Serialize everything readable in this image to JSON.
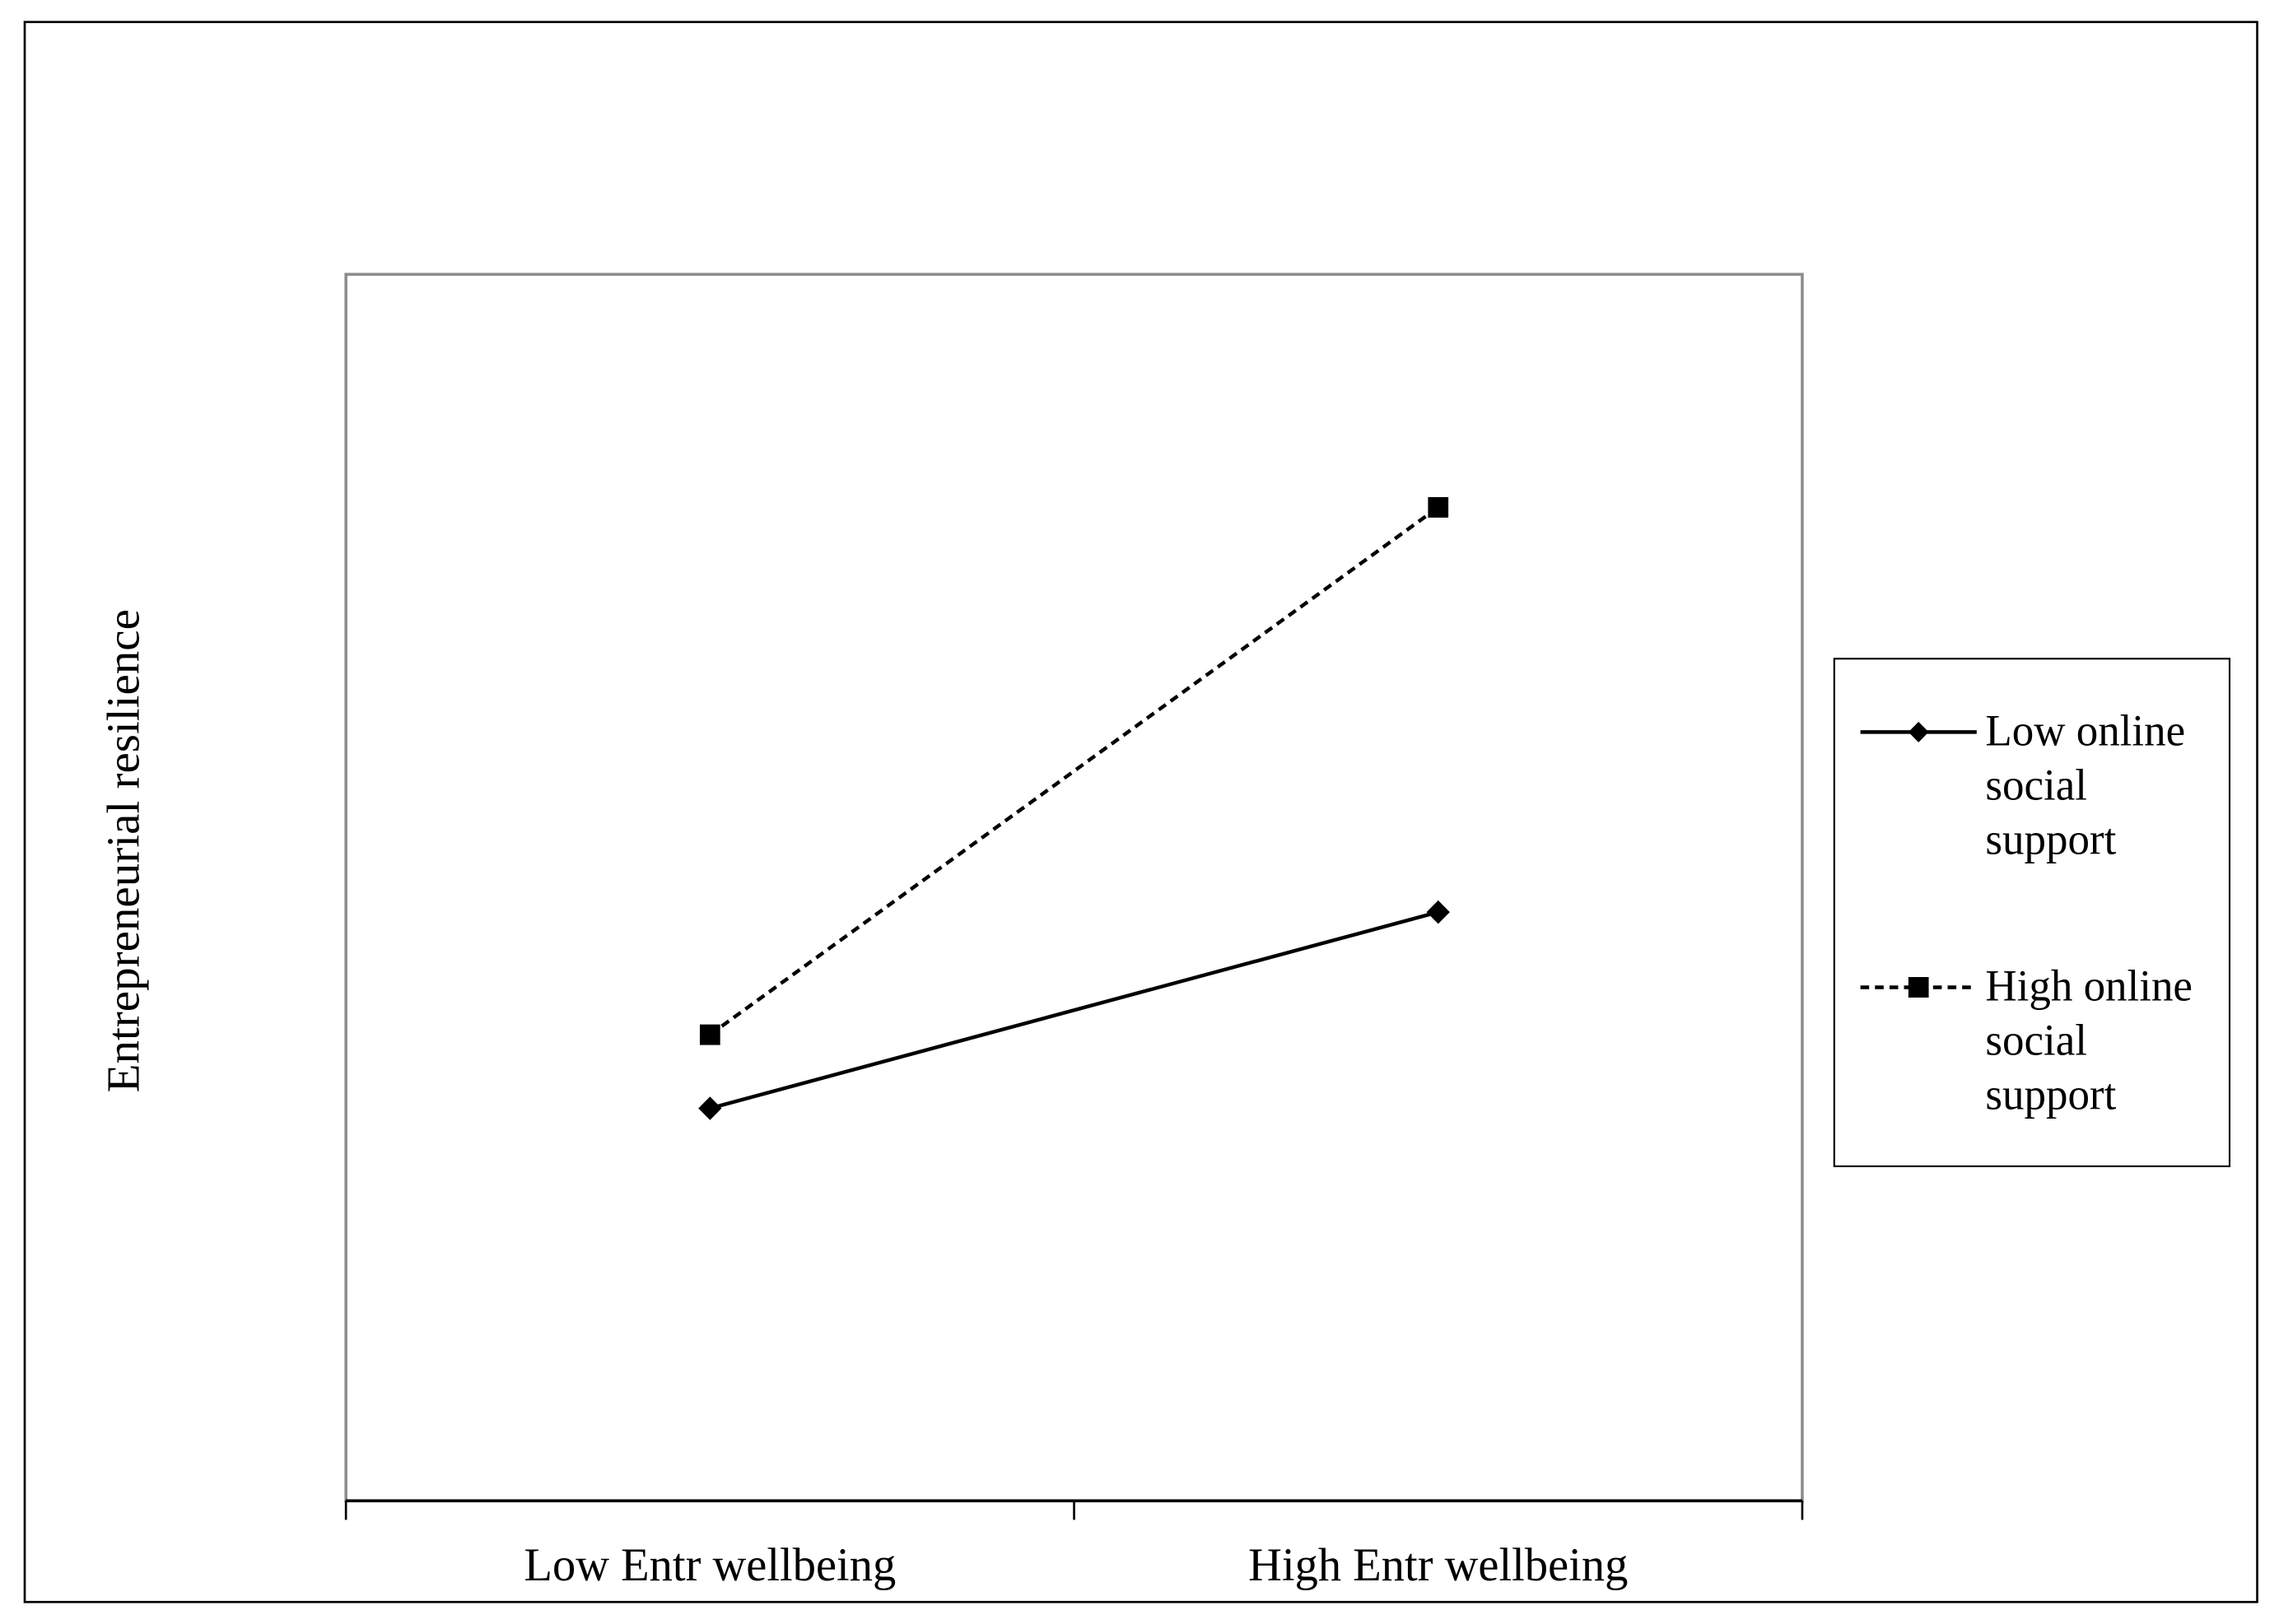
{
  "chart_data": {
    "type": "line",
    "y_label": "Entrepreneurial  resilience",
    "categories": [
      "Low Entr  wellbeing",
      "High Entr  wellbeing"
    ],
    "ylim": [
      0,
      100
    ],
    "series": [
      {
        "name": "Low online social support",
        "color": "#000000",
        "dash": "solid",
        "marker": "diamond",
        "values": [
          32,
          48
        ]
      },
      {
        "name": "High online social support",
        "color": "#000000",
        "dash": "dashed",
        "marker": "square",
        "values": [
          38,
          81
        ]
      }
    ],
    "legend": "right"
  }
}
